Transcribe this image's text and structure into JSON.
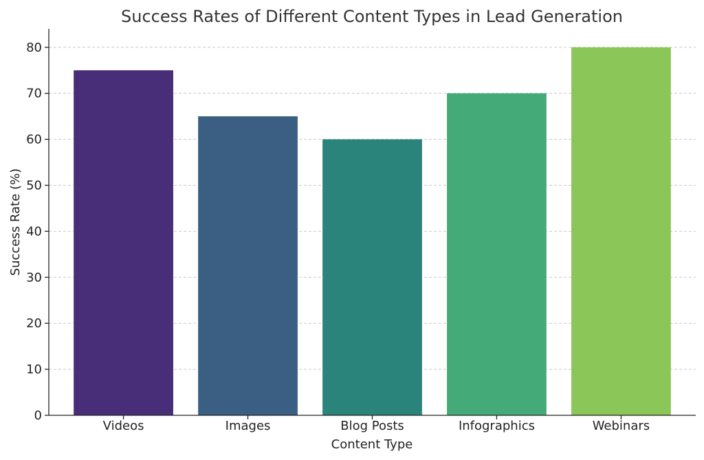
{
  "chart_data": {
    "type": "bar",
    "title": "Success Rates of Different Content Types in Lead Generation",
    "xlabel": "Content Type",
    "ylabel": "Success Rate (%)",
    "categories": [
      "Videos",
      "Images",
      "Blog Posts",
      "Infographics",
      "Webinars"
    ],
    "values": [
      75,
      65,
      60,
      70,
      80
    ],
    "colors": [
      "#482d78",
      "#3b5f82",
      "#2a847b",
      "#44aa78",
      "#8bc658"
    ],
    "ylim": [
      0,
      84
    ],
    "yticks": [
      0,
      10,
      20,
      30,
      40,
      50,
      60,
      70,
      80
    ],
    "grid": "y-dashed",
    "legend": "none"
  }
}
